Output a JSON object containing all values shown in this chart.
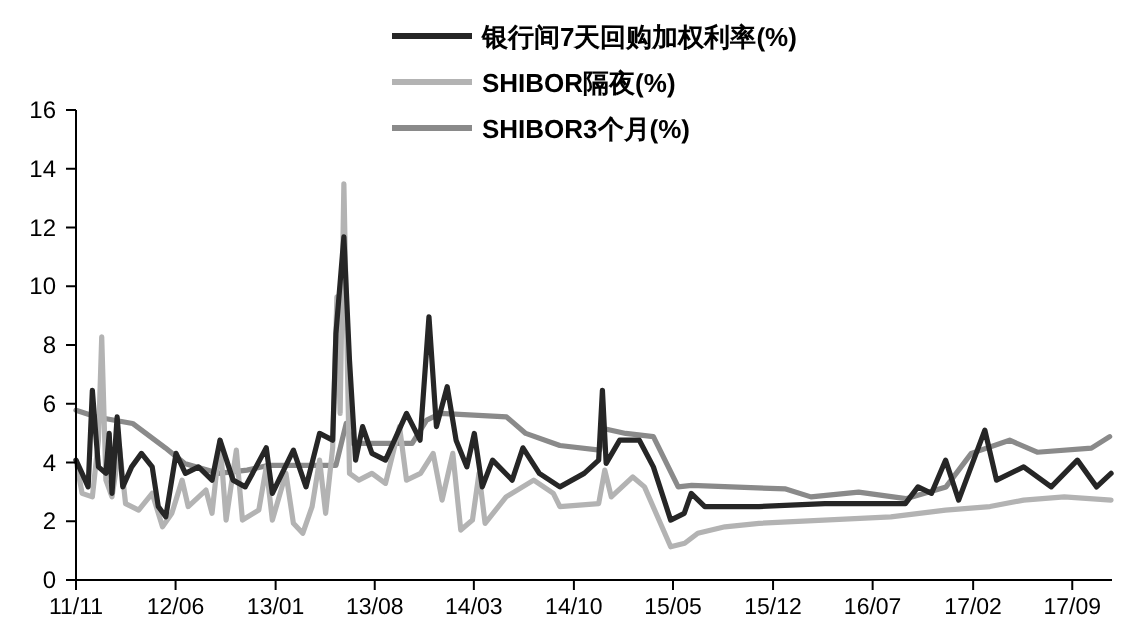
{
  "chart_data": {
    "type": "line",
    "legend": "top",
    "grid": false,
    "marker": "none",
    "line_style": "solid",
    "ylim": [
      0,
      16
    ],
    "yticks": [
      0,
      2,
      4,
      6,
      8,
      10,
      12,
      14,
      16
    ],
    "xlim": [
      "2011-11-01",
      "2017-11-25"
    ],
    "xticks": [
      {
        "value": "2011-11-01",
        "label": "11/11"
      },
      {
        "value": "2012-06-01",
        "label": "12/06"
      },
      {
        "value": "2013-01-01",
        "label": "13/01"
      },
      {
        "value": "2013-08-01",
        "label": "13/08"
      },
      {
        "value": "2014-03-01",
        "label": "14/03"
      },
      {
        "value": "2014-10-01",
        "label": "14/10"
      },
      {
        "value": "2015-05-01",
        "label": "15/05"
      },
      {
        "value": "2015-12-01",
        "label": "15/12"
      },
      {
        "value": "2016-07-01",
        "label": "16/07"
      },
      {
        "value": "2017-02-01",
        "label": "17/02"
      },
      {
        "value": "2017-09-01",
        "label": "17/09"
      }
    ],
    "series": [
      {
        "name": "银行间7天回购加权利率(%)",
        "color": "#262626",
        "x": [
          "2011-11-01",
          "2011-11-14",
          "2011-11-27",
          "2011-12-06",
          "2011-12-12",
          "2011-12-19",
          "2012-01-04",
          "2012-01-11",
          "2012-01-17",
          "2012-01-28",
          "2012-02-09",
          "2012-02-28",
          "2012-03-20",
          "2012-04-12",
          "2012-04-25",
          "2012-05-11",
          "2012-06-02",
          "2012-06-22",
          "2012-07-20",
          "2012-08-18",
          "2012-09-04",
          "2012-10-02",
          "2012-10-28",
          "2012-12-12",
          "2012-12-25",
          "2013-02-08",
          "2013-03-07",
          "2013-04-05",
          "2013-05-03",
          "2013-05-10",
          "2013-05-27",
          "2013-06-08",
          "2013-06-21",
          "2013-07-06",
          "2013-07-26",
          "2013-08-24",
          "2013-10-08",
          "2013-11-06",
          "2013-11-25",
          "2013-12-11",
          "2014-01-03",
          "2014-01-22",
          "2014-02-14",
          "2014-03-02",
          "2014-03-19",
          "2014-04-10",
          "2014-05-22",
          "2014-06-14",
          "2014-07-19",
          "2014-09-01",
          "2014-10-23",
          "2014-11-23",
          "2014-12-01",
          "2014-12-09",
          "2015-01-07",
          "2015-02-18",
          "2015-03-20",
          "2015-04-26",
          "2015-05-25",
          "2015-06-09",
          "2015-07-08",
          "2015-11-01",
          "2016-03-21",
          "2016-09-09",
          "2016-10-06",
          "2016-11-04",
          "2016-12-04",
          "2017-01-01",
          "2017-02-26",
          "2017-03-23",
          "2017-05-20",
          "2017-07-18",
          "2017-09-12",
          "2017-10-23",
          "2017-11-23"
        ],
        "values": [
          4.08,
          3.63,
          3.17,
          6.46,
          5.22,
          3.85,
          3.63,
          4.99,
          2.95,
          5.55,
          3.17,
          3.85,
          4.31,
          3.85,
          2.5,
          2.15,
          4.31,
          3.63,
          3.85,
          3.4,
          4.76,
          3.4,
          3.17,
          4.5,
          2.95,
          4.42,
          3.17,
          4.99,
          4.76,
          8.39,
          11.68,
          7.48,
          4.08,
          5.22,
          4.31,
          4.08,
          5.67,
          4.76,
          8.96,
          5.22,
          6.58,
          4.76,
          3.85,
          4.99,
          3.17,
          4.08,
          3.4,
          4.5,
          3.63,
          3.17,
          3.63,
          4.08,
          6.46,
          3.97,
          4.76,
          4.76,
          3.85,
          2.04,
          2.27,
          2.95,
          2.5,
          2.5,
          2.6,
          2.6,
          3.17,
          2.95,
          4.08,
          2.72,
          5.1,
          3.4,
          3.85,
          3.17,
          4.08,
          3.17,
          3.63
        ]
      },
      {
        "name": "SHIBOR隔夜(%)",
        "color": "#b3b3b3",
        "x": [
          "2011-11-01",
          "2011-11-14",
          "2011-12-06",
          "2011-12-19",
          "2011-12-26",
          "2012-01-04",
          "2012-01-17",
          "2012-02-02",
          "2012-02-15",
          "2012-03-14",
          "2012-04-12",
          "2012-05-04",
          "2012-05-24",
          "2012-06-15",
          "2012-06-28",
          "2012-08-05",
          "2012-08-18",
          "2012-09-04",
          "2012-09-17",
          "2012-10-09",
          "2012-10-22",
          "2012-11-26",
          "2012-12-12",
          "2012-12-25",
          "2013-01-23",
          "2013-02-08",
          "2013-02-28",
          "2013-03-20",
          "2013-04-05",
          "2013-04-18",
          "2013-05-03",
          "2013-05-12",
          "2013-05-19",
          "2013-05-27",
          "2013-06-08",
          "2013-06-28",
          "2013-07-26",
          "2013-08-24",
          "2013-09-23",
          "2013-10-08",
          "2013-11-07",
          "2013-12-04",
          "2013-12-23",
          "2014-01-15",
          "2014-02-01",
          "2014-02-26",
          "2014-03-12",
          "2014-03-25",
          "2014-05-09",
          "2014-07-07",
          "2014-08-18",
          "2014-09-01",
          "2014-11-23",
          "2014-12-06",
          "2014-12-20",
          "2015-02-04",
          "2015-03-01",
          "2015-04-26",
          "2015-05-26",
          "2015-06-23",
          "2015-08-20",
          "2015-11-01",
          "2016-08-09",
          "2016-12-04",
          "2017-03-09",
          "2017-05-20",
          "2017-08-15",
          "2017-11-23"
        ],
        "values": [
          4.08,
          2.95,
          2.83,
          4.76,
          8.28,
          3.4,
          2.83,
          4.5,
          2.6,
          2.38,
          2.95,
          1.81,
          2.27,
          3.4,
          2.5,
          3.06,
          2.27,
          4.76,
          2.04,
          4.42,
          2.04,
          2.38,
          3.85,
          2.04,
          3.63,
          1.93,
          1.59,
          2.5,
          4.08,
          2.27,
          4.5,
          9.64,
          5.67,
          13.49,
          3.63,
          3.4,
          3.63,
          3.29,
          5.22,
          3.4,
          3.63,
          4.31,
          2.72,
          4.31,
          1.7,
          2.04,
          3.63,
          1.93,
          2.83,
          3.4,
          2.95,
          2.5,
          2.6,
          3.74,
          2.83,
          3.51,
          3.17,
          1.13,
          1.25,
          1.59,
          1.81,
          1.93,
          2.15,
          2.38,
          2.5,
          2.72,
          2.83,
          2.72
        ]
      },
      {
        "name": "SHIBOR3个月(%)",
        "color": "#8a8a8a",
        "x": [
          "2011-11-01",
          "2011-12-15",
          "2012-03-01",
          "2012-05-10",
          "2012-06-20",
          "2012-09-01",
          "2012-11-01",
          "2012-12-15",
          "2013-05-10",
          "2013-06-01",
          "2013-06-15",
          "2013-10-20",
          "2013-11-20",
          "2013-12-20",
          "2014-05-10",
          "2014-06-20",
          "2014-09-01",
          "2014-11-25",
          "2014-12-05",
          "2015-01-20",
          "2015-03-20",
          "2015-05-12",
          "2015-06-10",
          "2015-12-28",
          "2016-02-20",
          "2016-06-01",
          "2016-09-10",
          "2016-12-05",
          "2017-01-28",
          "2017-04-20",
          "2017-06-18",
          "2017-10-12",
          "2017-11-20"
        ],
        "values": [
          5.78,
          5.55,
          5.33,
          4.5,
          3.97,
          3.63,
          3.74,
          3.9,
          3.9,
          5.33,
          4.65,
          4.65,
          5.44,
          5.67,
          5.55,
          4.99,
          4.58,
          4.42,
          5.15,
          4.99,
          4.88,
          3.17,
          3.22,
          3.1,
          2.83,
          2.99,
          2.77,
          3.17,
          4.31,
          4.76,
          4.35,
          4.49,
          4.88
        ]
      }
    ]
  }
}
